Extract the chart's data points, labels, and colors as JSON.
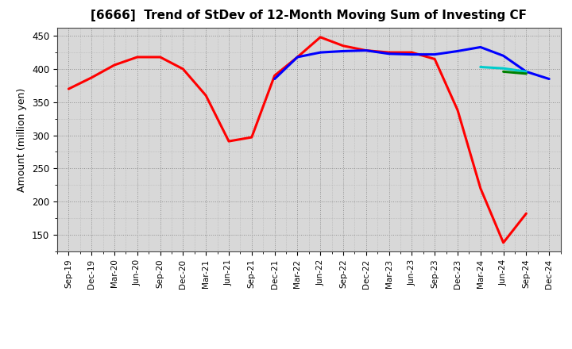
{
  "title": "[6666]  Trend of StDev of 12-Month Moving Sum of Investing CF",
  "ylabel": "Amount (million yen)",
  "background_color": "#ffffff",
  "plot_bg_color": "#e8e8e8",
  "grid_color": "#aaaaaa",
  "x_labels": [
    "Sep-19",
    "Dec-19",
    "Mar-20",
    "Jun-20",
    "Sep-20",
    "Dec-20",
    "Mar-21",
    "Jun-21",
    "Sep-21",
    "Dec-21",
    "Mar-22",
    "Jun-22",
    "Sep-22",
    "Dec-22",
    "Mar-23",
    "Jun-23",
    "Sep-23",
    "Dec-23",
    "Mar-24",
    "Jun-24",
    "Sep-24",
    "Dec-24"
  ],
  "ylim": [
    125,
    462
  ],
  "yticks": [
    150,
    200,
    250,
    300,
    350,
    400,
    450
  ],
  "series": {
    "3 Years": {
      "color": "#ff0000",
      "linewidth": 2.2,
      "data": [
        [
          "Sep-19",
          370
        ],
        [
          "Dec-19",
          387
        ],
        [
          "Mar-20",
          406
        ],
        [
          "Jun-20",
          418
        ],
        [
          "Sep-20",
          418
        ],
        [
          "Dec-20",
          400
        ],
        [
          "Mar-21",
          360
        ],
        [
          "Jun-21",
          291
        ],
        [
          "Sep-21",
          297
        ],
        [
          "Dec-21",
          390
        ],
        [
          "Mar-22",
          418
        ],
        [
          "Jun-22",
          448
        ],
        [
          "Sep-22",
          435
        ],
        [
          "Dec-22",
          428
        ],
        [
          "Mar-23",
          425
        ],
        [
          "Jun-23",
          425
        ],
        [
          "Sep-23",
          415
        ],
        [
          "Dec-23",
          338
        ],
        [
          "Mar-24",
          220
        ],
        [
          "Jun-24",
          138
        ],
        [
          "Sep-24",
          182
        ],
        [
          "Dec-24",
          null
        ]
      ]
    },
    "5 Years": {
      "color": "#0000ff",
      "linewidth": 2.2,
      "data": [
        [
          "Sep-19",
          null
        ],
        [
          "Dec-19",
          null
        ],
        [
          "Mar-20",
          null
        ],
        [
          "Jun-20",
          null
        ],
        [
          "Sep-20",
          null
        ],
        [
          "Dec-20",
          null
        ],
        [
          "Mar-21",
          null
        ],
        [
          "Jun-21",
          null
        ],
        [
          "Sep-21",
          null
        ],
        [
          "Dec-21",
          385
        ],
        [
          "Mar-22",
          418
        ],
        [
          "Jun-22",
          425
        ],
        [
          "Sep-22",
          427
        ],
        [
          "Dec-22",
          428
        ],
        [
          "Mar-23",
          423
        ],
        [
          "Jun-23",
          422
        ],
        [
          "Sep-23",
          422
        ],
        [
          "Dec-23",
          427
        ],
        [
          "Mar-24",
          433
        ],
        [
          "Jun-24",
          420
        ],
        [
          "Sep-24",
          396
        ],
        [
          "Dec-24",
          385
        ]
      ]
    },
    "7 Years": {
      "color": "#00cccc",
      "linewidth": 2.2,
      "data": [
        [
          "Sep-19",
          null
        ],
        [
          "Dec-19",
          null
        ],
        [
          "Mar-20",
          null
        ],
        [
          "Jun-20",
          null
        ],
        [
          "Sep-20",
          null
        ],
        [
          "Dec-20",
          null
        ],
        [
          "Mar-21",
          null
        ],
        [
          "Jun-21",
          null
        ],
        [
          "Sep-21",
          null
        ],
        [
          "Dec-21",
          null
        ],
        [
          "Mar-22",
          null
        ],
        [
          "Jun-22",
          null
        ],
        [
          "Sep-22",
          null
        ],
        [
          "Dec-22",
          null
        ],
        [
          "Mar-23",
          null
        ],
        [
          "Jun-23",
          null
        ],
        [
          "Sep-23",
          null
        ],
        [
          "Dec-23",
          null
        ],
        [
          "Mar-24",
          403
        ],
        [
          "Jun-24",
          401
        ],
        [
          "Sep-24",
          396
        ],
        [
          "Dec-24",
          null
        ]
      ]
    },
    "10 Years": {
      "color": "#008000",
      "linewidth": 2.2,
      "data": [
        [
          "Sep-19",
          null
        ],
        [
          "Dec-19",
          null
        ],
        [
          "Mar-20",
          null
        ],
        [
          "Jun-20",
          null
        ],
        [
          "Sep-20",
          null
        ],
        [
          "Dec-20",
          null
        ],
        [
          "Mar-21",
          null
        ],
        [
          "Jun-21",
          null
        ],
        [
          "Sep-21",
          null
        ],
        [
          "Dec-21",
          null
        ],
        [
          "Mar-22",
          null
        ],
        [
          "Jun-22",
          null
        ],
        [
          "Sep-22",
          null
        ],
        [
          "Dec-22",
          null
        ],
        [
          "Mar-23",
          null
        ],
        [
          "Jun-23",
          null
        ],
        [
          "Sep-23",
          null
        ],
        [
          "Dec-23",
          null
        ],
        [
          "Mar-24",
          null
        ],
        [
          "Jun-24",
          396
        ],
        [
          "Sep-24",
          393
        ],
        [
          "Dec-24",
          null
        ]
      ]
    }
  }
}
